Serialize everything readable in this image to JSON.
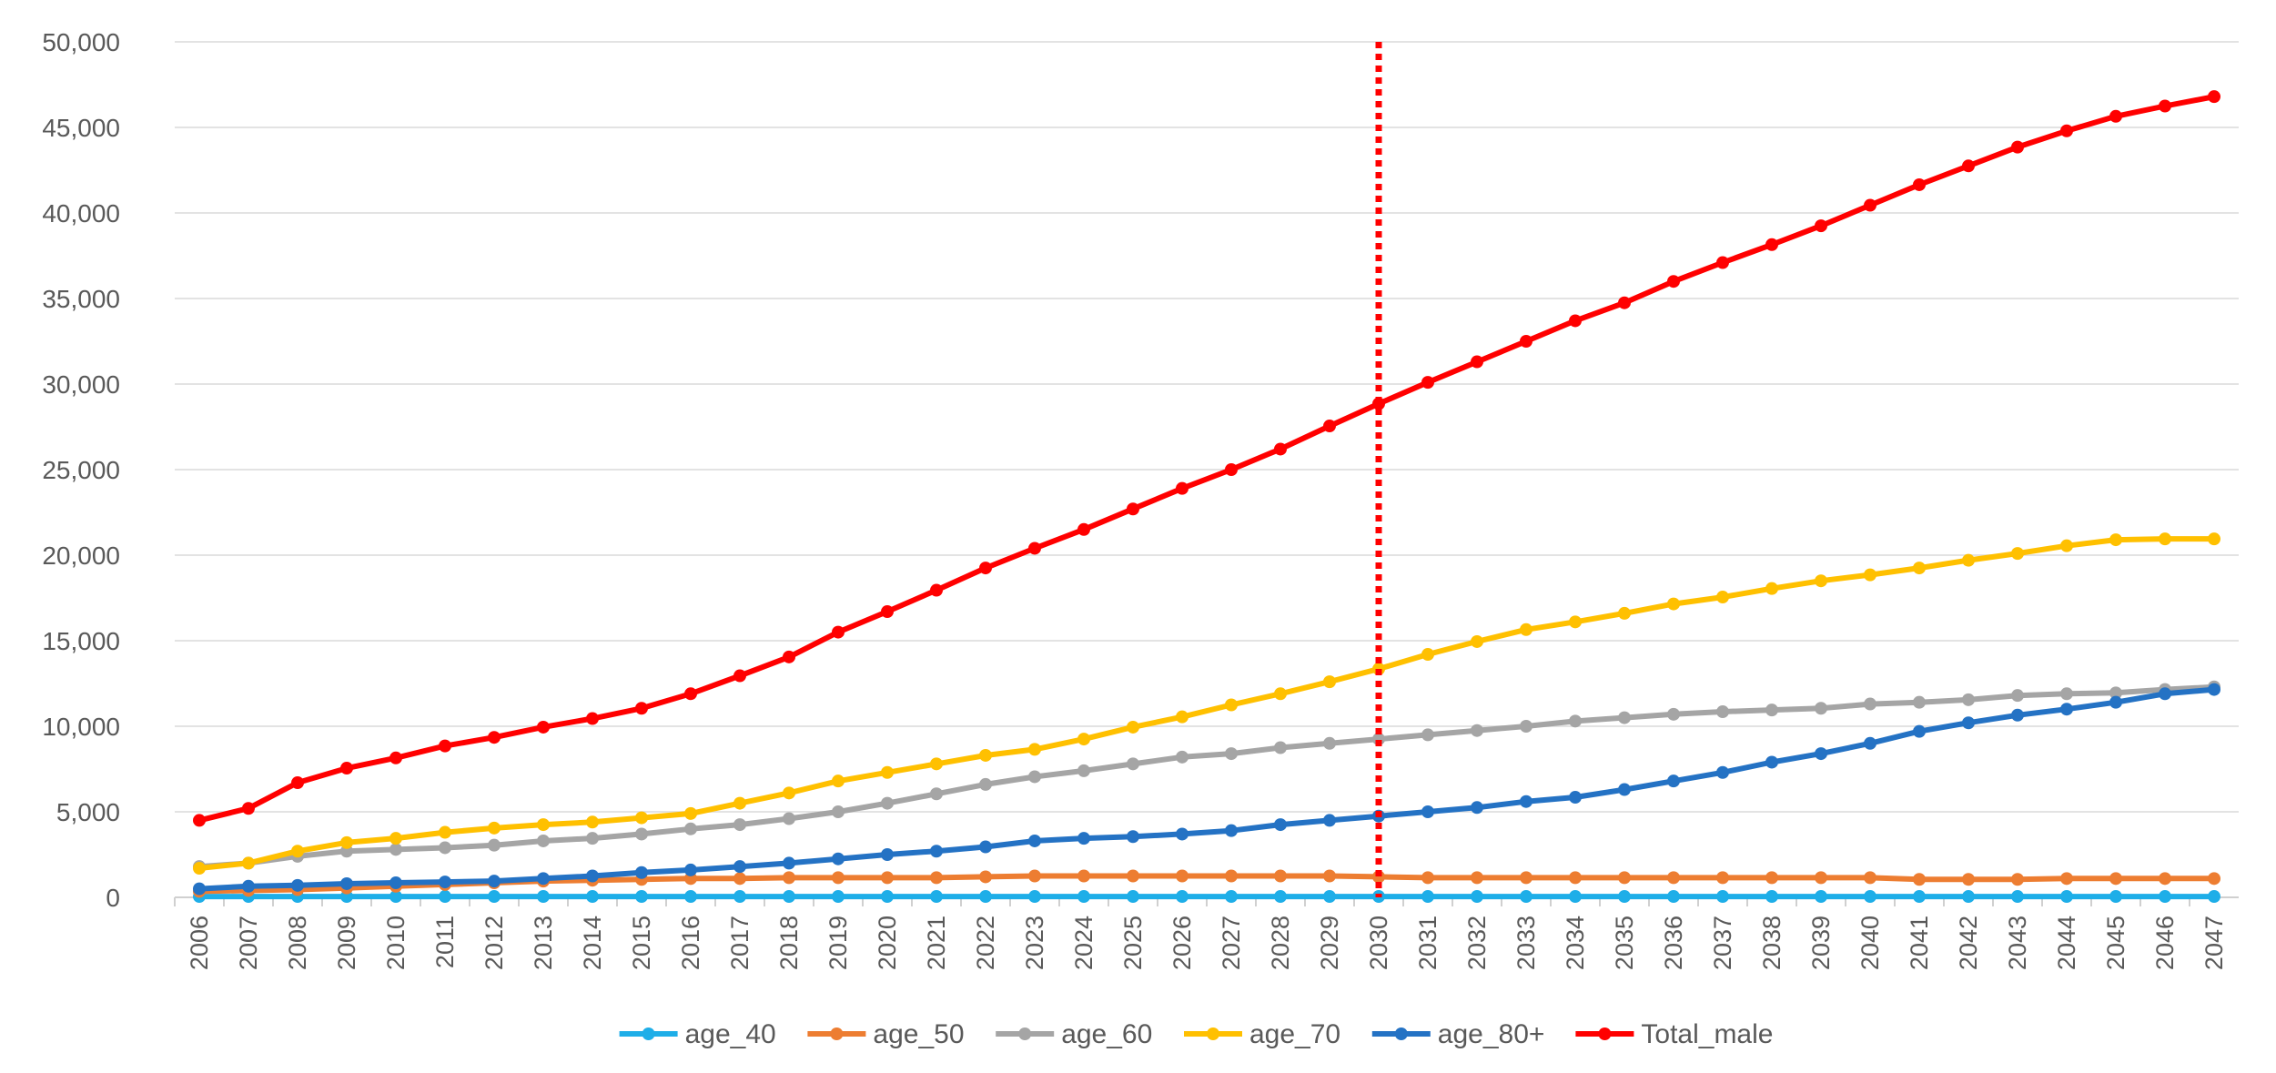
{
  "chart_data": {
    "type": "line",
    "title": "",
    "xlabel": "",
    "ylabel": "",
    "ylim": [
      0,
      50000
    ],
    "ytick_step": 5000,
    "grid": true,
    "legend_position": "bottom",
    "vline": {
      "at": "2030",
      "color": "#ff0000",
      "style": "dotted"
    },
    "categories": [
      "2006",
      "2007",
      "2008",
      "2009",
      "2010",
      "2011",
      "2012",
      "2013",
      "2014",
      "2015",
      "2016",
      "2017",
      "2018",
      "2019",
      "2020",
      "2021",
      "2022",
      "2023",
      "2024",
      "2025",
      "2026",
      "2027",
      "2028",
      "2029",
      "2030",
      "2031",
      "2032",
      "2033",
      "2034",
      "2035",
      "2036",
      "2037",
      "2038",
      "2039",
      "2040",
      "2041",
      "2042",
      "2043",
      "2044",
      "2045",
      "2046",
      "2047"
    ],
    "y_tick_labels": [
      "0",
      "5,000",
      "10,000",
      "15,000",
      "20,000",
      "25,000",
      "30,000",
      "35,000",
      "40,000",
      "45,000",
      "50,000"
    ],
    "series": [
      {
        "name": "age_40",
        "color": "#1eaee8",
        "values": [
          50,
          50,
          50,
          50,
          50,
          50,
          50,
          50,
          50,
          50,
          50,
          50,
          50,
          50,
          50,
          50,
          50,
          50,
          50,
          50,
          50,
          50,
          50,
          50,
          50,
          50,
          50,
          50,
          50,
          50,
          50,
          50,
          50,
          50,
          50,
          50,
          50,
          50,
          50,
          50,
          50,
          50
        ]
      },
      {
        "name": "age_50",
        "color": "#ed7d31",
        "values": [
          350,
          400,
          450,
          550,
          650,
          750,
          850,
          950,
          1000,
          1050,
          1100,
          1100,
          1150,
          1150,
          1150,
          1150,
          1200,
          1250,
          1250,
          1250,
          1250,
          1250,
          1250,
          1250,
          1200,
          1150,
          1150,
          1150,
          1150,
          1150,
          1150,
          1150,
          1150,
          1150,
          1150,
          1050,
          1050,
          1050,
          1100,
          1100,
          1100,
          1100
        ]
      },
      {
        "name": "age_60",
        "color": "#a5a5a5",
        "values": [
          1800,
          2000,
          2400,
          2700,
          2800,
          2900,
          3050,
          3300,
          3450,
          3700,
          4000,
          4250,
          4600,
          5000,
          5500,
          6050,
          6600,
          7050,
          7400,
          7800,
          8200,
          8400,
          8750,
          9000,
          9250,
          9500,
          9750,
          10000,
          10300,
          10500,
          10700,
          10850,
          10950,
          11050,
          11300,
          11400,
          11550,
          11800,
          11900,
          11950,
          12150,
          12300
        ]
      },
      {
        "name": "age_70",
        "color": "#ffc000",
        "values": [
          1700,
          2000,
          2700,
          3200,
          3450,
          3800,
          4050,
          4250,
          4400,
          4650,
          4900,
          5500,
          6100,
          6800,
          7300,
          7800,
          8300,
          8650,
          9250,
          9950,
          10550,
          11250,
          11900,
          12600,
          13350,
          14200,
          14950,
          15650,
          16100,
          16600,
          17150,
          17550,
          18050,
          18500,
          18850,
          19250,
          19700,
          20100,
          20550,
          20900,
          20950,
          20950
        ]
      },
      {
        "name": "age_80+",
        "color": "#2472c4",
        "values": [
          500,
          650,
          700,
          800,
          850,
          900,
          950,
          1100,
          1250,
          1450,
          1600,
          1800,
          2000,
          2250,
          2500,
          2700,
          2950,
          3300,
          3450,
          3550,
          3700,
          3900,
          4250,
          4500,
          4750,
          5000,
          5250,
          5600,
          5850,
          6300,
          6800,
          7300,
          7900,
          8400,
          9000,
          9700,
          10200,
          10650,
          11000,
          11400,
          11900,
          12150
        ]
      },
      {
        "name": "Total_male",
        "color": "#ff0000",
        "values": [
          4500,
          5200,
          6700,
          7550,
          8150,
          8850,
          9350,
          9950,
          10450,
          11050,
          11900,
          12950,
          14050,
          15500,
          16700,
          17950,
          19250,
          20400,
          21500,
          22700,
          23900,
          25000,
          26200,
          27550,
          28850,
          30100,
          31300,
          32500,
          33700,
          34750,
          36000,
          37100,
          38150,
          39250,
          40450,
          41650,
          42750,
          43850,
          44800,
          45650,
          46250,
          46800
        ]
      }
    ]
  }
}
